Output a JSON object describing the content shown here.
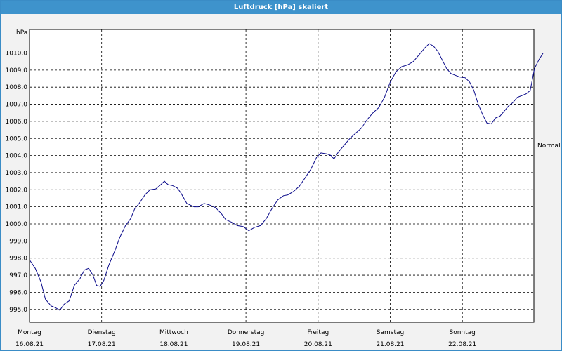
{
  "window": {
    "title": "Luftdruck [hPa] skaliert"
  },
  "chart_data": {
    "type": "line",
    "title": "Luftdruck [hPa] skaliert",
    "ylabel": "hPa",
    "ylim": [
      994.2,
      1011.4
    ],
    "y_ticks": [
      "995,0",
      "996,0",
      "997,0",
      "998,0",
      "999,0",
      "1000,0",
      "1001,0",
      "1002,0",
      "1003,0",
      "1004,0",
      "1005,0",
      "1006,0",
      "1007,0",
      "1008,0",
      "1009,0",
      "1010,0"
    ],
    "reference_label": "Normal",
    "reference_value": 1004.6,
    "grid": true,
    "x_categories": [
      {
        "day": "Montag",
        "date": "16.08.21"
      },
      {
        "day": "Dienstag",
        "date": "17.08.21"
      },
      {
        "day": "Mittwoch",
        "date": "18.08.21"
      },
      {
        "day": "Donnerstag",
        "date": "19.08.21"
      },
      {
        "day": "Freitag",
        "date": "20.08.21"
      },
      {
        "day": "Samstag",
        "date": "21.08.21"
      },
      {
        "day": "Sonntag",
        "date": "22.08.21"
      }
    ],
    "series": [
      {
        "color": "#0a0a8a",
        "points": [
          [
            0.0,
            997.9
          ],
          [
            0.08,
            997.4
          ],
          [
            0.16,
            996.6
          ],
          [
            0.22,
            995.6
          ],
          [
            0.3,
            995.2
          ],
          [
            0.36,
            995.1
          ],
          [
            0.42,
            994.95
          ],
          [
            0.48,
            995.3
          ],
          [
            0.55,
            995.5
          ],
          [
            0.62,
            996.4
          ],
          [
            0.7,
            996.8
          ],
          [
            0.76,
            997.3
          ],
          [
            0.82,
            997.4
          ],
          [
            0.88,
            997.0
          ],
          [
            0.93,
            996.4
          ],
          [
            0.98,
            996.35
          ],
          [
            1.03,
            996.7
          ],
          [
            1.1,
            997.6
          ],
          [
            1.18,
            998.4
          ],
          [
            1.25,
            999.2
          ],
          [
            1.33,
            999.9
          ],
          [
            1.4,
            1000.3
          ],
          [
            1.46,
            1000.9
          ],
          [
            1.52,
            1001.2
          ],
          [
            1.6,
            1001.7
          ],
          [
            1.67,
            1002.0
          ],
          [
            1.75,
            1002.05
          ],
          [
            1.82,
            1002.3
          ],
          [
            1.87,
            1002.5
          ],
          [
            1.92,
            1002.3
          ],
          [
            1.98,
            1002.25
          ],
          [
            2.05,
            1002.1
          ],
          [
            2.1,
            1001.8
          ],
          [
            2.18,
            1001.2
          ],
          [
            2.28,
            1001.0
          ],
          [
            2.34,
            1001.0
          ],
          [
            2.42,
            1001.2
          ],
          [
            2.5,
            1001.1
          ],
          [
            2.58,
            1000.95
          ],
          [
            2.66,
            1000.6
          ],
          [
            2.72,
            1000.25
          ],
          [
            2.8,
            1000.1
          ],
          [
            2.88,
            999.9
          ],
          [
            2.96,
            999.85
          ],
          [
            3.04,
            999.6
          ],
          [
            3.12,
            999.8
          ],
          [
            3.2,
            999.9
          ],
          [
            3.28,
            1000.3
          ],
          [
            3.36,
            1000.9
          ],
          [
            3.44,
            1001.4
          ],
          [
            3.52,
            1001.65
          ],
          [
            3.58,
            1001.7
          ],
          [
            3.66,
            1001.9
          ],
          [
            3.74,
            1002.2
          ],
          [
            3.82,
            1002.7
          ],
          [
            3.9,
            1003.2
          ],
          [
            3.98,
            1003.9
          ],
          [
            4.04,
            1004.15
          ],
          [
            4.12,
            1004.1
          ],
          [
            4.18,
            1004.0
          ],
          [
            4.22,
            1003.8
          ],
          [
            4.28,
            1004.2
          ],
          [
            4.36,
            1004.6
          ],
          [
            4.44,
            1005.0
          ],
          [
            4.52,
            1005.3
          ],
          [
            4.6,
            1005.6
          ],
          [
            4.68,
            1006.1
          ],
          [
            4.76,
            1006.5
          ],
          [
            4.84,
            1006.8
          ],
          [
            4.92,
            1007.4
          ],
          [
            5.0,
            1008.3
          ],
          [
            5.08,
            1008.9
          ],
          [
            5.16,
            1009.2
          ],
          [
            5.24,
            1009.3
          ],
          [
            5.32,
            1009.5
          ],
          [
            5.4,
            1009.9
          ],
          [
            5.48,
            1010.3
          ],
          [
            5.54,
            1010.55
          ],
          [
            5.6,
            1010.4
          ],
          [
            5.66,
            1010.1
          ],
          [
            5.72,
            1009.6
          ],
          [
            5.78,
            1009.1
          ],
          [
            5.84,
            1008.8
          ],
          [
            5.9,
            1008.7
          ],
          [
            5.96,
            1008.6
          ],
          [
            6.04,
            1008.55
          ],
          [
            6.1,
            1008.3
          ],
          [
            6.16,
            1007.8
          ],
          [
            6.22,
            1007.0
          ],
          [
            6.28,
            1006.4
          ],
          [
            6.34,
            1005.9
          ],
          [
            6.4,
            1005.85
          ],
          [
            6.46,
            1006.2
          ],
          [
            6.52,
            1006.3
          ],
          [
            6.58,
            1006.6
          ],
          [
            6.64,
            1006.9
          ],
          [
            6.7,
            1007.1
          ],
          [
            6.76,
            1007.4
          ],
          [
            6.82,
            1007.5
          ],
          [
            6.88,
            1007.6
          ],
          [
            6.94,
            1007.8
          ],
          [
            7.0,
            1009.1
          ],
          [
            7.06,
            1009.6
          ],
          [
            7.12,
            1010.0
          ]
        ]
      }
    ]
  }
}
